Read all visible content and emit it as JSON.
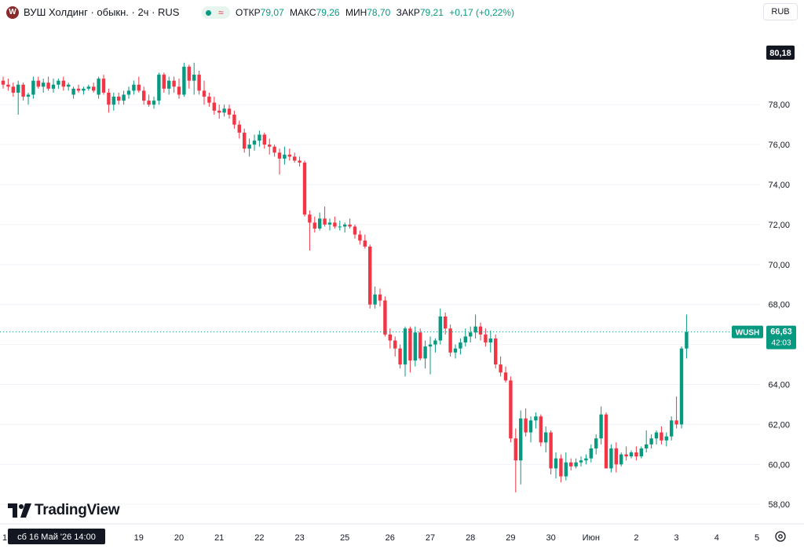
{
  "header": {
    "logo_letter": "W",
    "title": "ВУШ Холдинг · обыкн. · 2ч · RUS",
    "ohlc": [
      {
        "label": "ОТКР",
        "value": "79,07"
      },
      {
        "label": "МАКС",
        "value": "79,26"
      },
      {
        "label": "МИН",
        "value": "78,70"
      },
      {
        "label": "ЗАКР",
        "value": "79,21"
      }
    ],
    "change": "+0,17 (+0,22%)",
    "currency": "RUB"
  },
  "colors": {
    "up": "#089981",
    "down": "#f23645",
    "grid": "#f0f3fa",
    "text": "#131722"
  },
  "crosshair_price": "80,18",
  "crosshair_time": "сб 16 Май '26   14:00",
  "last_price": {
    "symbol": "WUSH",
    "price": "66,63",
    "countdown": "42:03"
  },
  "branding": "TradingView",
  "icons": {
    "settings": "settings-icon",
    "logo": "tradingview-logo-icon"
  },
  "chart_data": {
    "type": "candlestick",
    "ylim": [
      57.3,
      81.9
    ],
    "y_ticks": [
      "58,00",
      "60,00",
      "62,00",
      "64,00",
      "66,00",
      "68,00",
      "70,00",
      "72,00",
      "74,00",
      "76,00",
      "78,00"
    ],
    "y_tick_values": [
      58,
      60,
      62,
      64,
      66,
      68,
      70,
      72,
      74,
      76,
      78
    ],
    "x_labels": [
      "1",
      "19",
      "20",
      "21",
      "22",
      "23",
      "25",
      "26",
      "27",
      "28",
      "29",
      "30",
      "Июн",
      "2",
      "3",
      "4",
      "5"
    ],
    "x_label_positions": [
      0,
      27,
      35,
      43,
      51,
      59,
      68,
      77,
      85,
      93,
      101,
      109,
      117,
      126,
      134,
      142,
      150
    ],
    "candles": [
      [
        79.2,
        79.4,
        78.8,
        79.0
      ],
      [
        79.0,
        79.3,
        78.7,
        78.9
      ],
      [
        78.9,
        79.1,
        78.4,
        78.6
      ],
      [
        78.6,
        79.2,
        77.5,
        79.0
      ],
      [
        79.0,
        79.1,
        78.2,
        78.4
      ],
      [
        78.4,
        78.6,
        78.0,
        78.5
      ],
      [
        78.5,
        79.4,
        78.3,
        79.2
      ],
      [
        79.2,
        79.4,
        78.8,
        78.9
      ],
      [
        78.9,
        79.3,
        78.6,
        79.1
      ],
      [
        79.1,
        79.4,
        78.7,
        78.8
      ],
      [
        78.8,
        79.3,
        78.6,
        79.0
      ],
      [
        79.0,
        79.3,
        78.8,
        79.2
      ],
      [
        79.2,
        79.4,
        78.7,
        78.9
      ],
      [
        78.9,
        79.1,
        78.7,
        79.0
      ],
      [
        78.5,
        78.9,
        78.3,
        78.8
      ],
      [
        78.8,
        79.0,
        78.6,
        78.7
      ],
      [
        78.7,
        78.9,
        78.5,
        78.8
      ],
      [
        78.8,
        79.0,
        78.7,
        78.9
      ],
      [
        78.9,
        79.1,
        78.6,
        78.7
      ],
      [
        78.5,
        79.4,
        78.3,
        79.3
      ],
      [
        79.3,
        79.5,
        78.5,
        78.6
      ],
      [
        78.6,
        78.8,
        77.6,
        78.0
      ],
      [
        78.0,
        78.6,
        77.7,
        78.4
      ],
      [
        78.4,
        78.6,
        78.0,
        78.2
      ],
      [
        78.2,
        78.7,
        78.0,
        78.5
      ],
      [
        78.5,
        78.9,
        78.3,
        78.7
      ],
      [
        78.7,
        79.2,
        78.5,
        79.0
      ],
      [
        79.0,
        79.4,
        78.6,
        78.7
      ],
      [
        78.7,
        78.9,
        78.0,
        78.2
      ],
      [
        78.2,
        78.5,
        77.9,
        78.0
      ],
      [
        78.0,
        78.4,
        77.8,
        78.2
      ],
      [
        78.2,
        79.6,
        78.0,
        79.5
      ],
      [
        79.5,
        79.6,
        78.6,
        78.8
      ],
      [
        78.8,
        79.4,
        78.5,
        79.2
      ],
      [
        79.2,
        79.4,
        78.6,
        78.9
      ],
      [
        78.9,
        79.3,
        78.3,
        78.5
      ],
      [
        78.5,
        80.1,
        78.4,
        79.9
      ],
      [
        79.9,
        80.0,
        78.8,
        79.2
      ],
      [
        79.2,
        80.1,
        78.5,
        79.5
      ],
      [
        79.5,
        79.7,
        78.5,
        78.7
      ],
      [
        78.7,
        79.2,
        78.0,
        78.4
      ],
      [
        78.4,
        78.6,
        77.9,
        78.1
      ],
      [
        78.1,
        78.4,
        77.5,
        77.7
      ],
      [
        77.7,
        78.0,
        77.3,
        77.6
      ],
      [
        77.6,
        78.0,
        77.4,
        77.8
      ],
      [
        77.8,
        78.0,
        77.3,
        77.5
      ],
      [
        77.5,
        77.7,
        76.8,
        77.0
      ],
      [
        77.0,
        77.2,
        76.3,
        76.6
      ],
      [
        76.6,
        76.8,
        75.6,
        75.8
      ],
      [
        75.8,
        76.3,
        75.4,
        76.0
      ],
      [
        76.0,
        76.5,
        75.7,
        76.2
      ],
      [
        76.2,
        76.7,
        75.9,
        76.5
      ],
      [
        76.5,
        76.6,
        75.8,
        76.0
      ],
      [
        76.0,
        76.3,
        75.5,
        75.9
      ],
      [
        75.9,
        76.0,
        75.4,
        75.6
      ],
      [
        75.6,
        75.8,
        74.5,
        75.3
      ],
      [
        75.3,
        75.9,
        75.0,
        75.5
      ],
      [
        75.5,
        75.8,
        75.2,
        75.4
      ],
      [
        75.4,
        75.6,
        75.1,
        75.2
      ],
      [
        75.2,
        75.4,
        74.9,
        75.1
      ],
      [
        75.1,
        75.2,
        72.4,
        72.5
      ],
      [
        72.5,
        72.7,
        70.7,
        72.1
      ],
      [
        72.1,
        72.4,
        71.6,
        71.8
      ],
      [
        71.8,
        72.6,
        71.7,
        72.3
      ],
      [
        72.3,
        72.9,
        71.9,
        72.0
      ],
      [
        72.0,
        72.3,
        71.7,
        72.1
      ],
      [
        72.1,
        72.4,
        71.8,
        71.9
      ],
      [
        71.9,
        72.2,
        71.7,
        71.9
      ],
      [
        71.9,
        72.1,
        71.6,
        72.0
      ],
      [
        72.0,
        72.3,
        71.8,
        71.9
      ],
      [
        71.9,
        72.0,
        71.3,
        71.5
      ],
      [
        71.5,
        71.7,
        71.0,
        71.2
      ],
      [
        71.2,
        71.5,
        70.8,
        70.9
      ],
      [
        70.9,
        71.0,
        67.8,
        68.0
      ],
      [
        68.0,
        68.9,
        67.8,
        68.5
      ],
      [
        68.5,
        68.8,
        67.9,
        68.2
      ],
      [
        68.2,
        68.4,
        66.4,
        66.5
      ],
      [
        66.5,
        66.8,
        65.8,
        66.2
      ],
      [
        66.2,
        66.4,
        65.4,
        65.8
      ],
      [
        65.8,
        66.0,
        64.8,
        65.0
      ],
      [
        65.0,
        66.9,
        64.4,
        66.8
      ],
      [
        66.8,
        66.9,
        64.6,
        65.2
      ],
      [
        65.2,
        66.9,
        64.9,
        66.6
      ],
      [
        66.6,
        66.8,
        65.2,
        65.3
      ],
      [
        65.3,
        66.2,
        64.8,
        65.9
      ],
      [
        65.9,
        66.4,
        64.5,
        66.0
      ],
      [
        66.0,
        66.3,
        65.6,
        66.2
      ],
      [
        66.2,
        67.8,
        66.0,
        67.4
      ],
      [
        67.4,
        67.6,
        66.5,
        66.8
      ],
      [
        66.8,
        67.0,
        65.4,
        65.6
      ],
      [
        65.6,
        66.0,
        65.3,
        65.8
      ],
      [
        65.8,
        66.3,
        65.5,
        66.1
      ],
      [
        66.1,
        66.8,
        65.9,
        66.4
      ],
      [
        66.4,
        66.9,
        66.1,
        66.6
      ],
      [
        66.6,
        67.5,
        66.3,
        66.9
      ],
      [
        66.9,
        67.1,
        66.2,
        66.5
      ],
      [
        66.5,
        66.8,
        65.9,
        66.1
      ],
      [
        66.1,
        66.7,
        65.6,
        66.3
      ],
      [
        66.3,
        66.5,
        64.8,
        65.0
      ],
      [
        65.0,
        65.4,
        64.4,
        64.6
      ],
      [
        64.6,
        64.9,
        64.1,
        64.2
      ],
      [
        64.2,
        64.4,
        61.1,
        61.3
      ],
      [
        61.3,
        61.8,
        58.6,
        60.2
      ],
      [
        60.2,
        62.7,
        59.0,
        62.3
      ],
      [
        62.3,
        62.8,
        61.4,
        61.6
      ],
      [
        61.6,
        62.4,
        61.1,
        62.2
      ],
      [
        62.2,
        62.6,
        61.8,
        62.4
      ],
      [
        62.4,
        62.5,
        60.9,
        61.1
      ],
      [
        61.1,
        61.9,
        60.6,
        61.6
      ],
      [
        61.6,
        61.7,
        59.5,
        59.8
      ],
      [
        59.8,
        60.6,
        59.3,
        60.3
      ],
      [
        60.3,
        60.5,
        59.1,
        59.4
      ],
      [
        59.4,
        60.6,
        59.2,
        60.1
      ],
      [
        60.1,
        60.3,
        59.7,
        59.9
      ],
      [
        59.9,
        60.3,
        59.8,
        60.1
      ],
      [
        60.1,
        60.4,
        59.9,
        60.2
      ],
      [
        60.2,
        60.5,
        60.0,
        60.3
      ],
      [
        60.3,
        61.0,
        60.1,
        60.8
      ],
      [
        60.8,
        61.5,
        60.5,
        61.3
      ],
      [
        61.3,
        62.9,
        61.0,
        62.5
      ],
      [
        62.5,
        62.6,
        59.8,
        59.8
      ],
      [
        59.8,
        61.0,
        59.6,
        60.8
      ],
      [
        60.8,
        61.1,
        59.6,
        60.0
      ],
      [
        60.0,
        60.6,
        59.9,
        60.5
      ],
      [
        60.5,
        60.9,
        60.2,
        60.4
      ],
      [
        60.4,
        60.7,
        60.3,
        60.6
      ],
      [
        60.6,
        60.9,
        60.2,
        60.4
      ],
      [
        60.4,
        60.9,
        60.3,
        60.8
      ],
      [
        60.8,
        61.7,
        60.6,
        61.0
      ],
      [
        61.0,
        61.5,
        60.8,
        61.3
      ],
      [
        61.3,
        61.7,
        61.0,
        61.6
      ],
      [
        61.6,
        61.9,
        61.0,
        61.2
      ],
      [
        61.2,
        61.6,
        60.9,
        61.4
      ],
      [
        61.4,
        62.4,
        61.2,
        62.2
      ],
      [
        62.2,
        63.4,
        61.8,
        62.0
      ],
      [
        62.0,
        65.9,
        61.8,
        65.8
      ],
      [
        65.8,
        67.5,
        65.3,
        66.63
      ]
    ]
  }
}
